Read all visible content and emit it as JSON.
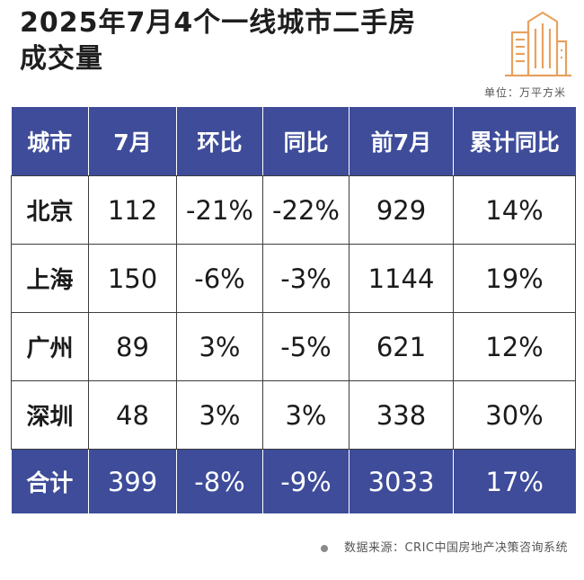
{
  "title": {
    "line1": "2025年7月4个一线城市二手房",
    "line2": "成交量"
  },
  "unit": "单位：万平方米",
  "table": {
    "headers": [
      "城市",
      "7月",
      "环比",
      "同比",
      "前7月",
      "累计同比"
    ],
    "rows": [
      [
        "北京",
        "112",
        "-21%",
        "-22%",
        "929",
        "14%"
      ],
      [
        "上海",
        "150",
        "-6%",
        "-3%",
        "1144",
        "19%"
      ],
      [
        "广州",
        "89",
        "3%",
        "-5%",
        "621",
        "12%"
      ],
      [
        "深圳",
        "48",
        "3%",
        "3%",
        "338",
        "30%"
      ]
    ],
    "total": [
      "合计",
      "399",
      "-8%",
      "-9%",
      "3033",
      "17%"
    ]
  },
  "source": "数据来源：CRIC中国房地产决策咨询系统",
  "colors": {
    "header_bg": "#3e4c9a",
    "header_text": "#ffffff",
    "logo": "#e8a15f"
  },
  "icons": {
    "logo": "building-icon",
    "source_bullet": "bullet-dot-icon"
  }
}
